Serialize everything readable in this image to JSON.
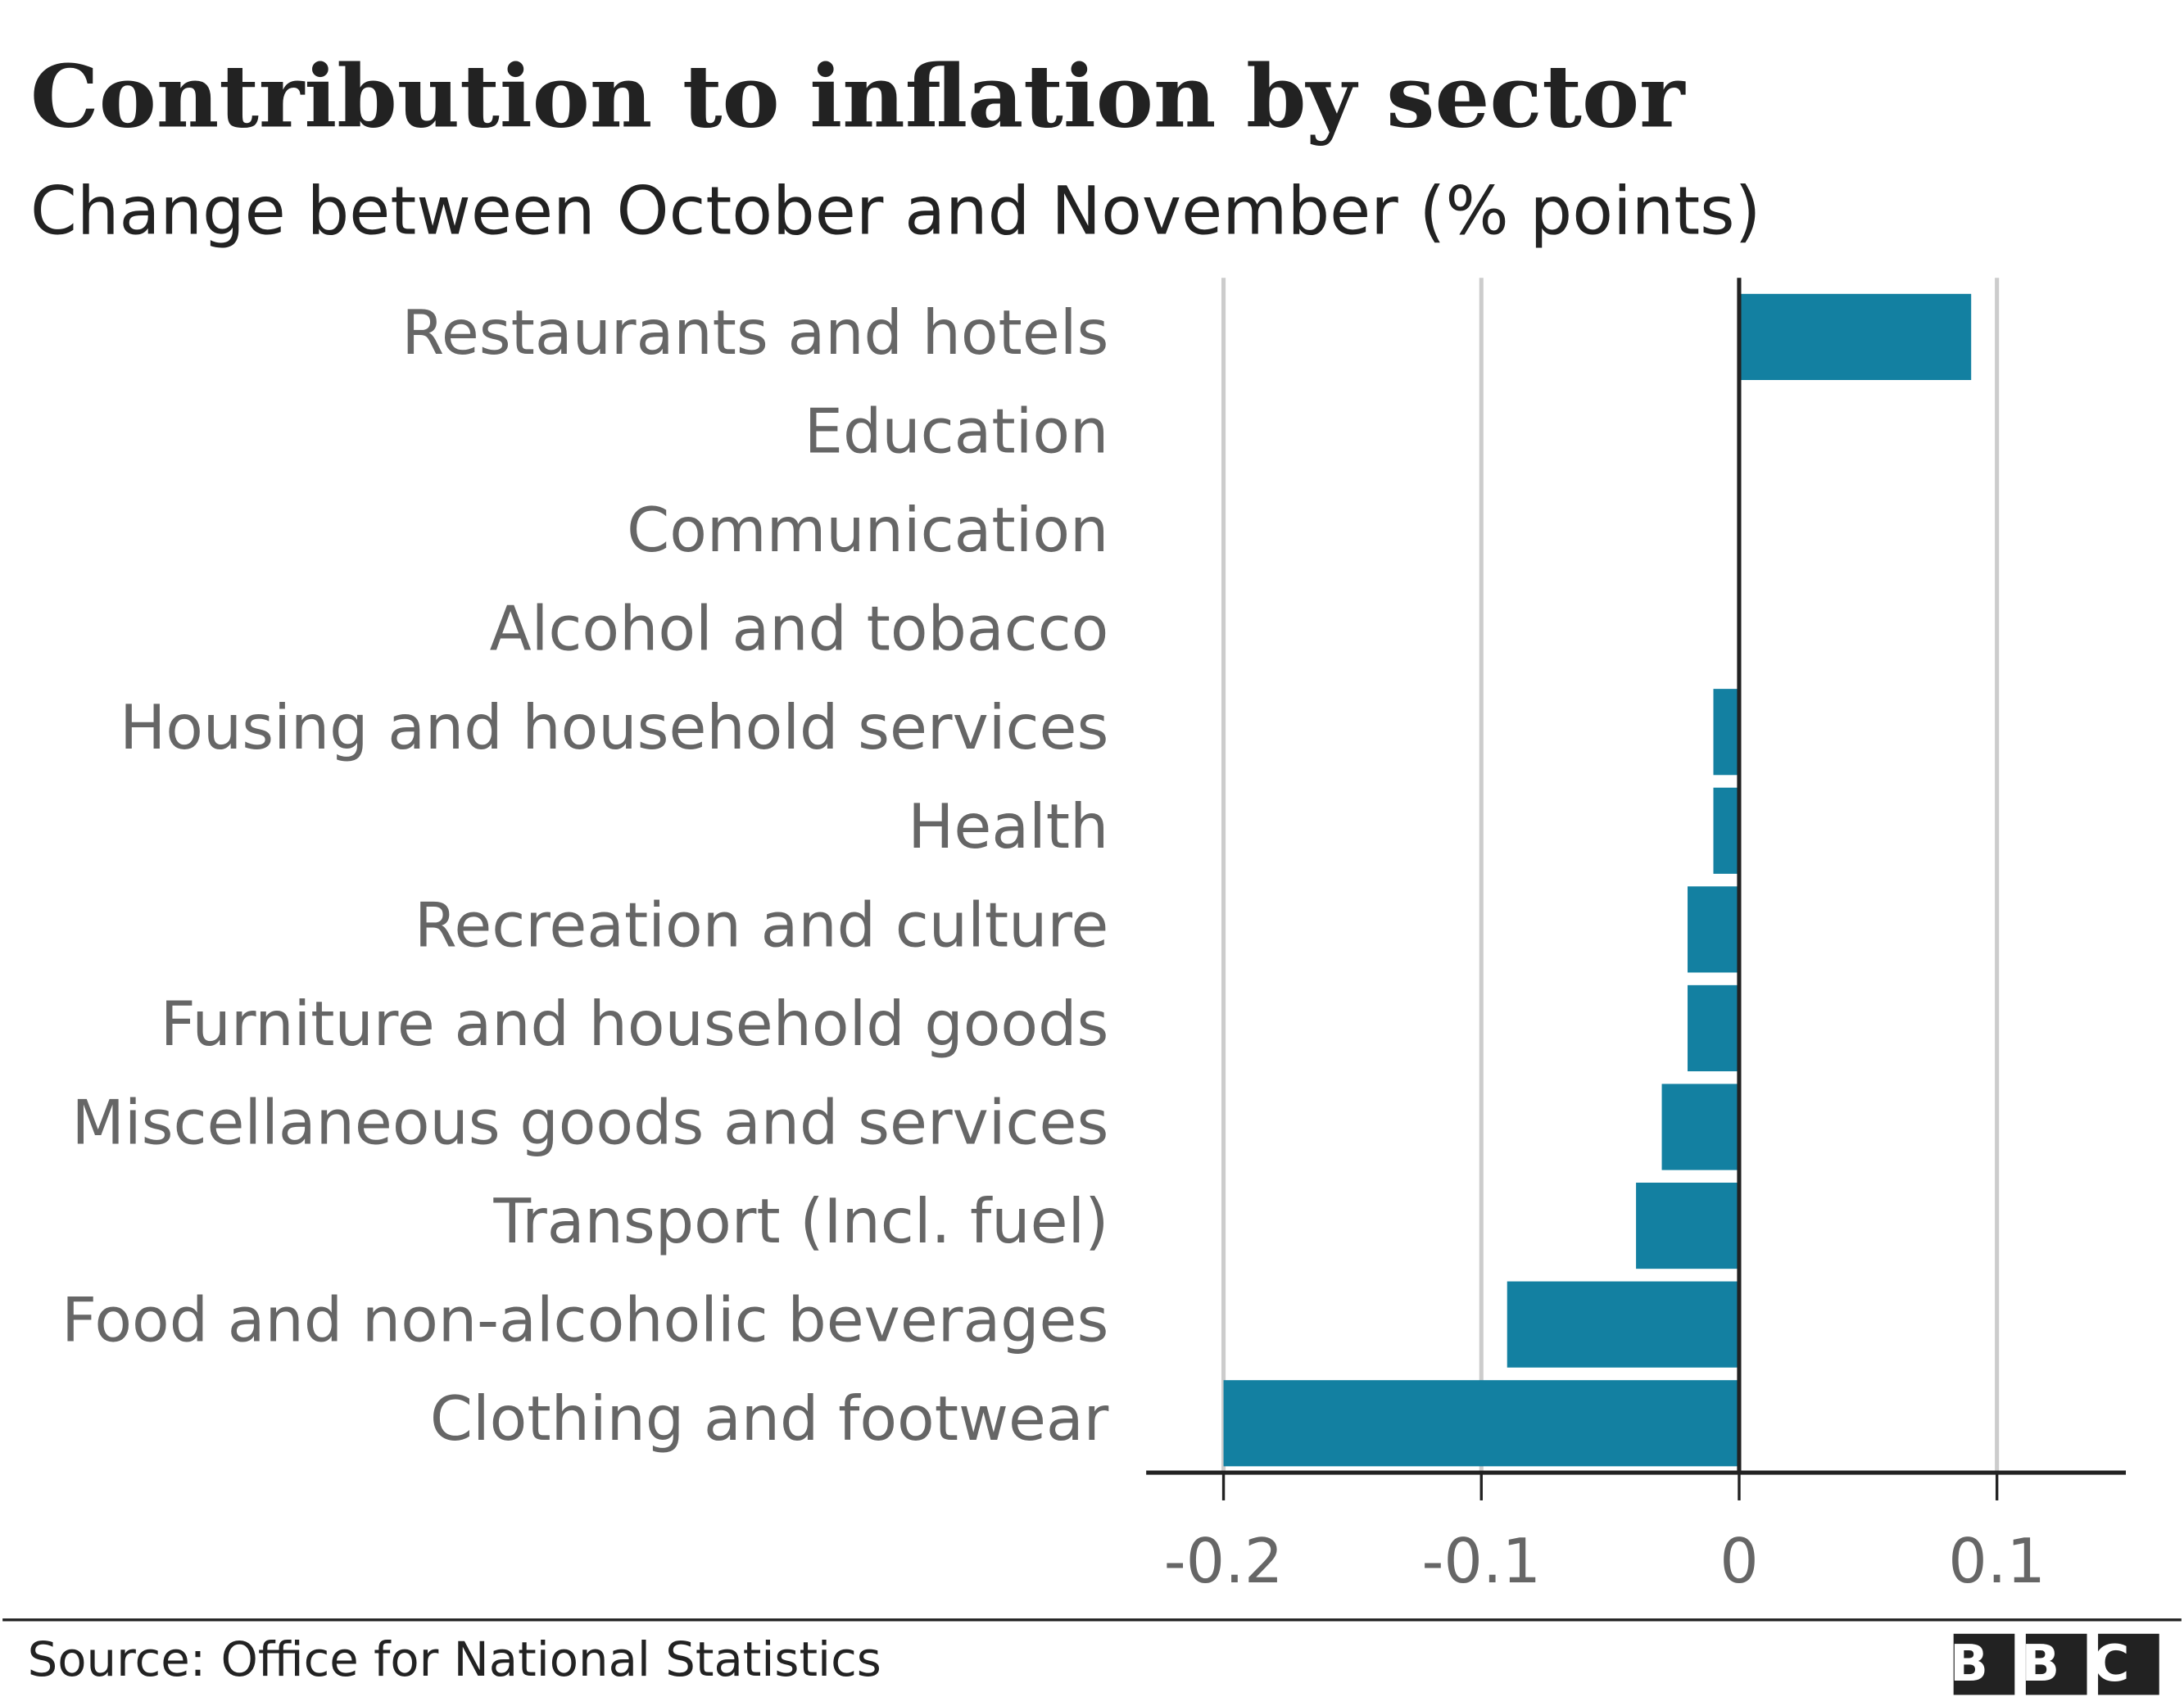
{
  "chart_data": {
    "type": "bar",
    "orientation": "horizontal",
    "title": "Contribution to inflation by sector",
    "subtitle": "Change between October and November (% points)",
    "categories": [
      "Restaurants and hotels",
      "Education",
      "Communication",
      "Alcohol and tobacco",
      "Housing and household services",
      "Health",
      "Recreation and culture",
      "Furniture and household goods",
      "Miscellaneous goods and services",
      "Transport (Incl. fuel)",
      "Food and non-alcoholic beverages",
      "Clothing and footwear"
    ],
    "values": [
      0.09,
      0,
      0,
      0,
      -0.01,
      -0.01,
      -0.02,
      -0.02,
      -0.03,
      -0.04,
      -0.09,
      -0.2
    ],
    "color": "#1380a1",
    "xlim": [
      -0.23,
      0.15
    ],
    "xticks": [
      -0.2,
      -0.1,
      0,
      0.1
    ],
    "grid": true,
    "source": "Source: Office for National Statistics",
    "logo": "BBC"
  }
}
